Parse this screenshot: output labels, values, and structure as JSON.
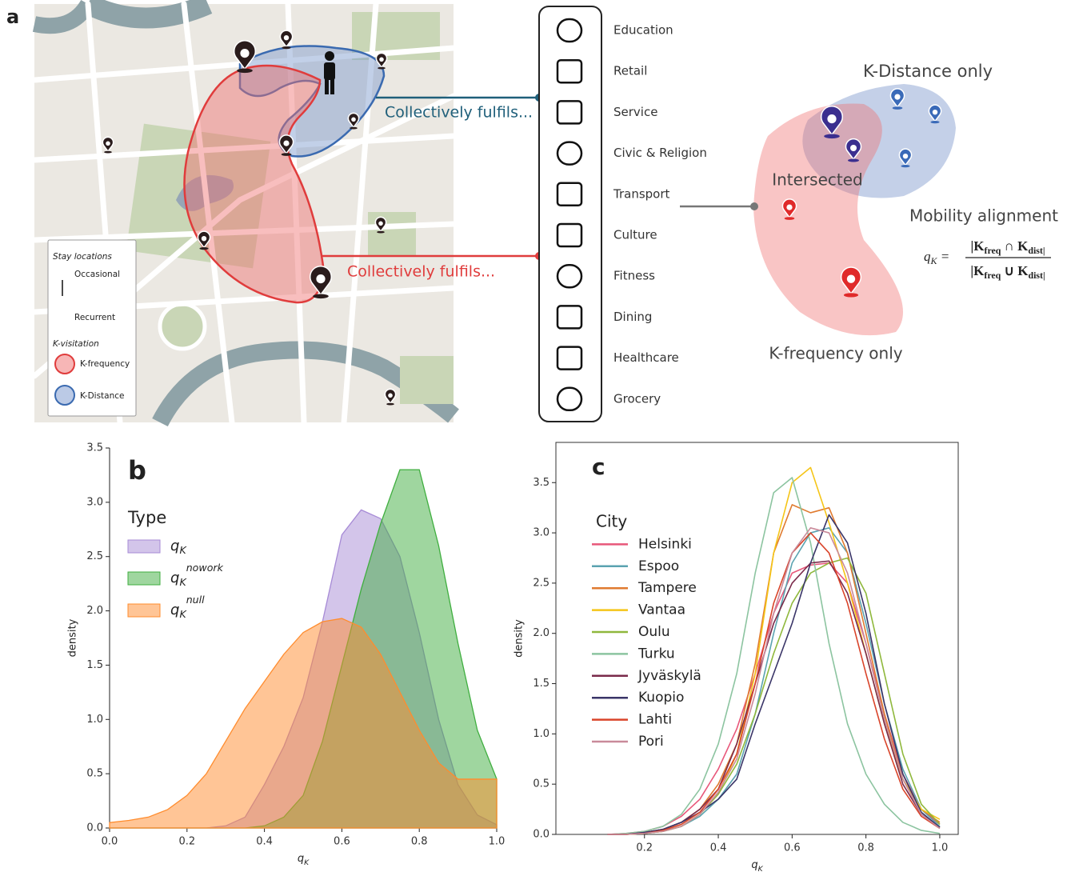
{
  "panel_labels": [
    "a",
    "b",
    "c"
  ],
  "panel_a": {
    "legend": {
      "stay_title": "Stay locations",
      "occasional": "Occasional",
      "recurrent": "Recurrent",
      "visit_title": "K-visitation",
      "k_frequency": "K-frequency",
      "k_distance": "K-Distance"
    },
    "link_blue": "Collectively fulfils...",
    "link_red": "Collectively fulfils...",
    "categories": [
      "Education",
      "Retail",
      "Service",
      "Civic & Religion",
      "Transport",
      "Culture",
      "Fitness",
      "Dining",
      "Healthcare",
      "Grocery"
    ],
    "venn": {
      "distance_only": "K-Distance only",
      "intersected": "Intersected",
      "frequency_only": "K-frequency only",
      "alignment": "Mobility alignment",
      "formula": {
        "lhs": "q_K =",
        "numerator": "|K_freq ∩ K_dist|",
        "denominator": "|K_freq ∪ K_dist|"
      }
    }
  },
  "chart_data": [
    {
      "type": "area",
      "xlabel": "q_K",
      "ylabel": "density",
      "legend_title": "Type",
      "x": [
        0,
        0.05,
        0.1,
        0.15,
        0.2,
        0.25,
        0.3,
        0.35,
        0.4,
        0.45,
        0.5,
        0.55,
        0.6,
        0.65,
        0.7,
        0.75,
        0.8,
        0.85,
        0.9,
        0.95,
        1.0
      ],
      "series": [
        {
          "name": "q_K",
          "color": "#a78bd6",
          "values": [
            0,
            0,
            0,
            0,
            0,
            0,
            0.02,
            0.1,
            0.4,
            0.75,
            1.2,
            1.9,
            2.7,
            2.93,
            2.85,
            2.5,
            1.8,
            1.0,
            0.4,
            0.12,
            0.03
          ]
        },
        {
          "name": "q_K^nowork",
          "color": "#3fae3f",
          "values": [
            0,
            0,
            0,
            0,
            0,
            0,
            0,
            0,
            0.02,
            0.1,
            0.3,
            0.8,
            1.5,
            2.2,
            2.8,
            3.3,
            3.3,
            2.6,
            1.7,
            0.9,
            0.45
          ]
        },
        {
          "name": "q_K^null",
          "color": "#ff8c2e",
          "values": [
            0.05,
            0.07,
            0.1,
            0.17,
            0.3,
            0.5,
            0.8,
            1.1,
            1.35,
            1.6,
            1.8,
            1.9,
            1.93,
            1.85,
            1.6,
            1.25,
            0.9,
            0.6,
            0.45,
            0.45,
            0.45
          ]
        }
      ],
      "xlim": [
        0,
        1.0
      ],
      "ylim": [
        0,
        3.5
      ],
      "xticks": [
        {
          "value": 0,
          "label": "0.0"
        },
        0.2,
        0.4,
        0.6,
        0.8,
        {
          "value": 1,
          "label": "1.0"
        }
      ],
      "yticks": [
        {
          "value": 0,
          "label": "0.0"
        },
        0.5,
        {
          "value": 1,
          "label": "1.0"
        },
        1.5,
        {
          "value": 2,
          "label": "2.0"
        },
        2.5,
        {
          "value": 3,
          "label": "3.0"
        },
        3.5
      ]
    },
    {
      "type": "line",
      "xlabel": "q_K",
      "ylabel": "density",
      "legend_title": "City",
      "x": [
        0.1,
        0.15,
        0.2,
        0.25,
        0.3,
        0.35,
        0.4,
        0.45,
        0.5,
        0.55,
        0.6,
        0.65,
        0.7,
        0.75,
        0.8,
        0.85,
        0.9,
        0.95,
        1.0
      ],
      "series": [
        {
          "name": "Helsinki",
          "color": "#e8577a",
          "values": [
            0,
            0.01,
            0.03,
            0.08,
            0.18,
            0.35,
            0.65,
            1.05,
            1.6,
            2.2,
            2.6,
            2.68,
            2.7,
            2.5,
            1.9,
            1.2,
            0.6,
            0.25,
            0.1
          ]
        },
        {
          "name": "Espoo",
          "color": "#5ba3b0",
          "values": [
            0,
            0,
            0.01,
            0.03,
            0.08,
            0.18,
            0.35,
            0.6,
            1.2,
            2.0,
            2.7,
            3.0,
            3.05,
            2.8,
            2.1,
            1.3,
            0.65,
            0.25,
            0.08
          ]
        },
        {
          "name": "Tampere",
          "color": "#e07b30",
          "values": [
            0,
            0,
            0.02,
            0.05,
            0.12,
            0.25,
            0.5,
            0.9,
            1.7,
            2.8,
            3.28,
            3.2,
            3.25,
            2.8,
            2.0,
            1.2,
            0.55,
            0.25,
            0.12
          ]
        },
        {
          "name": "Vantaa",
          "color": "#f5c518",
          "values": [
            0,
            0,
            0.01,
            0.03,
            0.08,
            0.2,
            0.4,
            0.8,
            1.6,
            2.8,
            3.5,
            3.65,
            3.1,
            2.5,
            1.8,
            1.1,
            0.55,
            0.25,
            0.15
          ]
        },
        {
          "name": "Oulu",
          "color": "#8fb83c",
          "values": [
            0,
            0,
            0.01,
            0.03,
            0.08,
            0.2,
            0.4,
            0.7,
            1.2,
            1.8,
            2.3,
            2.6,
            2.7,
            2.75,
            2.4,
            1.6,
            0.8,
            0.3,
            0.1
          ]
        },
        {
          "name": "Turku",
          "color": "#8cc4a0",
          "values": [
            0,
            0.01,
            0.03,
            0.08,
            0.2,
            0.45,
            0.9,
            1.6,
            2.6,
            3.4,
            3.55,
            2.9,
            1.9,
            1.1,
            0.6,
            0.3,
            0.12,
            0.04,
            0.01
          ]
        },
        {
          "name": "Jyväskylä",
          "color": "#7a2a4a",
          "values": [
            0,
            0,
            0.02,
            0.05,
            0.12,
            0.25,
            0.45,
            0.9,
            1.5,
            2.1,
            2.5,
            2.7,
            2.72,
            2.4,
            1.8,
            1.1,
            0.5,
            0.2,
            0.07
          ]
        },
        {
          "name": "Kuopio",
          "color": "#3a3568",
          "values": [
            0,
            0,
            0.02,
            0.05,
            0.12,
            0.22,
            0.35,
            0.55,
            1.1,
            1.6,
            2.1,
            2.7,
            3.18,
            2.9,
            2.2,
            1.3,
            0.6,
            0.22,
            0.07
          ]
        },
        {
          "name": "Lahti",
          "color": "#d9442a",
          "values": [
            0,
            0,
            0.01,
            0.04,
            0.1,
            0.22,
            0.45,
            0.8,
            1.5,
            2.3,
            2.8,
            3.0,
            2.8,
            2.3,
            1.6,
            0.95,
            0.45,
            0.18,
            0.06
          ]
        },
        {
          "name": "Pori",
          "color": "#c98a9a",
          "values": [
            0,
            0,
            0.01,
            0.03,
            0.08,
            0.2,
            0.42,
            0.75,
            1.4,
            2.2,
            2.8,
            3.05,
            3.0,
            2.6,
            1.9,
            1.15,
            0.55,
            0.2,
            0.06
          ]
        }
      ],
      "xlim": [
        -0.04,
        1.05
      ],
      "ylim": [
        0,
        3.9
      ],
      "xticks": [
        0.2,
        0.4,
        0.6,
        0.8,
        {
          "value": 1,
          "label": "1.0"
        }
      ],
      "yticks": [
        {
          "value": 0,
          "label": "0.0"
        },
        0.5,
        {
          "value": 1,
          "label": "1.0"
        },
        1.5,
        {
          "value": 2,
          "label": "2.0"
        },
        2.5,
        {
          "value": 3,
          "label": "3.0"
        },
        3.5
      ]
    }
  ]
}
